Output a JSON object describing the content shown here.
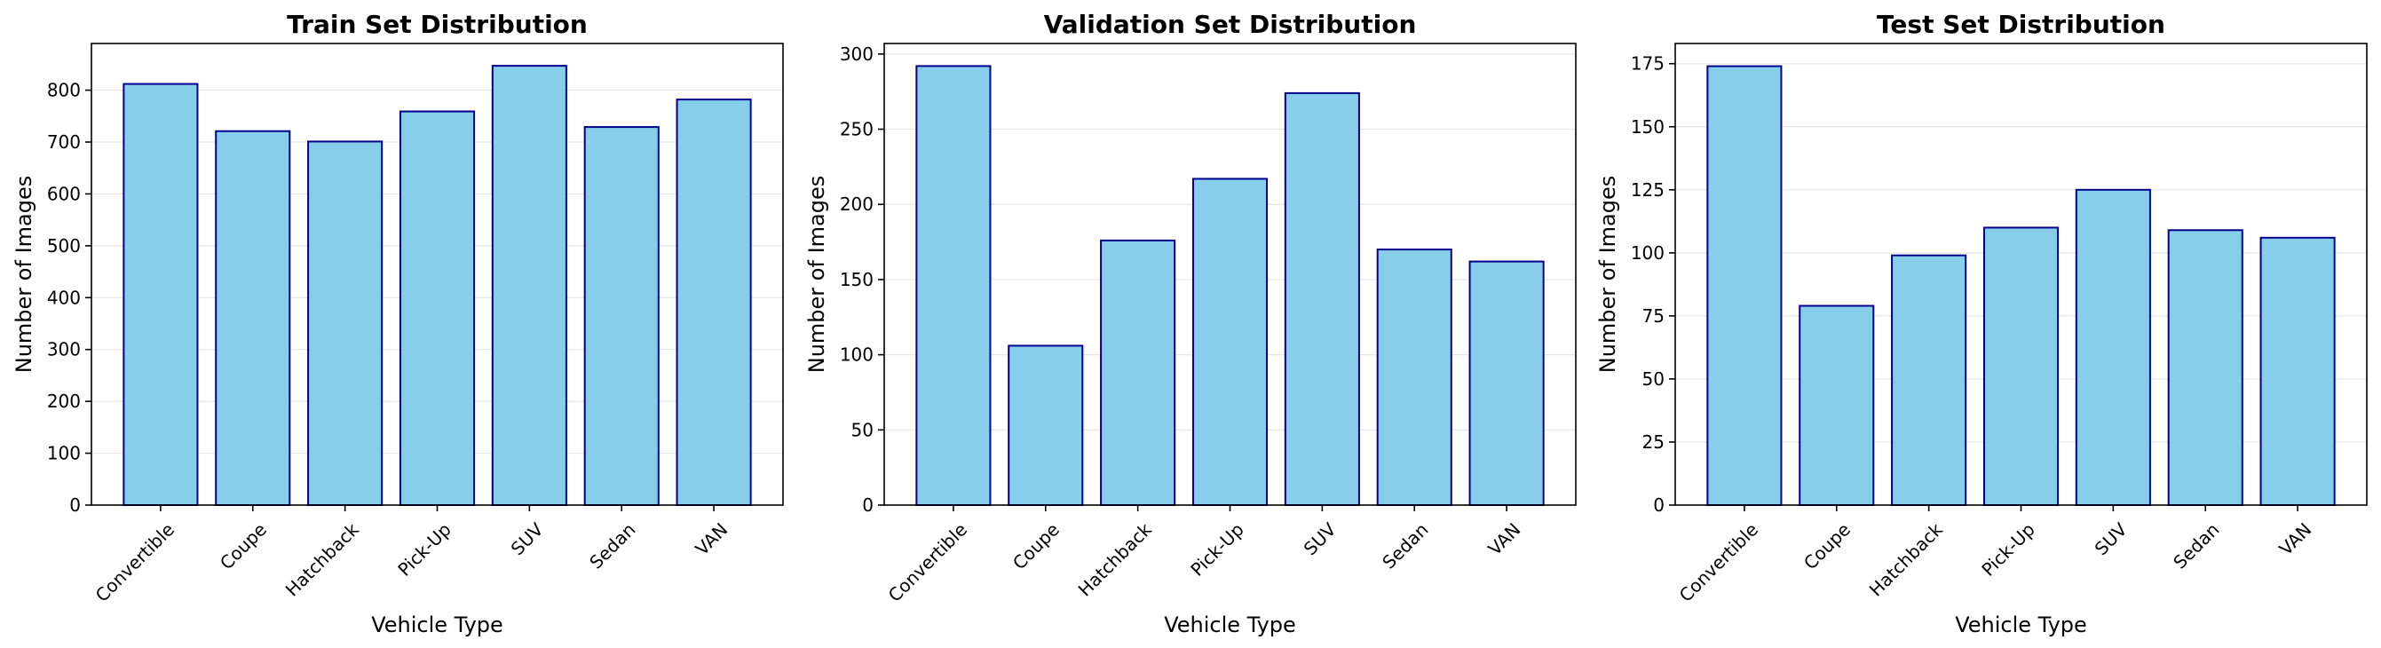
{
  "chart_data": [
    {
      "type": "bar",
      "title": "Train Set Distribution",
      "xlabel": "Vehicle Type",
      "ylabel": "Number of Images",
      "categories": [
        "Convertible",
        "Coupe",
        "Hatchback",
        "Pick-Up",
        "SUV",
        "Sedan",
        "VAN"
      ],
      "values": [
        812,
        721,
        701,
        759,
        847,
        729,
        782
      ],
      "ylim": [
        0,
        890
      ],
      "yticks": [
        0,
        100,
        200,
        300,
        400,
        500,
        600,
        700,
        800
      ],
      "grid": "y",
      "bar_color": "#87CEEB",
      "edge_color": "#00008B"
    },
    {
      "type": "bar",
      "title": "Validation Set Distribution",
      "xlabel": "Vehicle Type",
      "ylabel": "Number of Images",
      "categories": [
        "Convertible",
        "Coupe",
        "Hatchback",
        "Pick-Up",
        "SUV",
        "Sedan",
        "VAN"
      ],
      "values": [
        292,
        106,
        176,
        217,
        274,
        170,
        162
      ],
      "ylim": [
        0,
        307
      ],
      "yticks": [
        0,
        50,
        100,
        150,
        200,
        250,
        300
      ],
      "grid": "y",
      "bar_color": "#87CEEB",
      "edge_color": "#00008B"
    },
    {
      "type": "bar",
      "title": "Test Set Distribution",
      "xlabel": "Vehicle Type",
      "ylabel": "Number of Images",
      "categories": [
        "Convertible",
        "Coupe",
        "Hatchback",
        "Pick-Up",
        "SUV",
        "Sedan",
        "VAN"
      ],
      "values": [
        174,
        79,
        99,
        110,
        125,
        109,
        106
      ],
      "ylim": [
        0,
        183
      ],
      "yticks": [
        0,
        25,
        50,
        75,
        100,
        125,
        150,
        175
      ],
      "grid": "y",
      "bar_color": "#87CEEB",
      "edge_color": "#00008B"
    }
  ]
}
